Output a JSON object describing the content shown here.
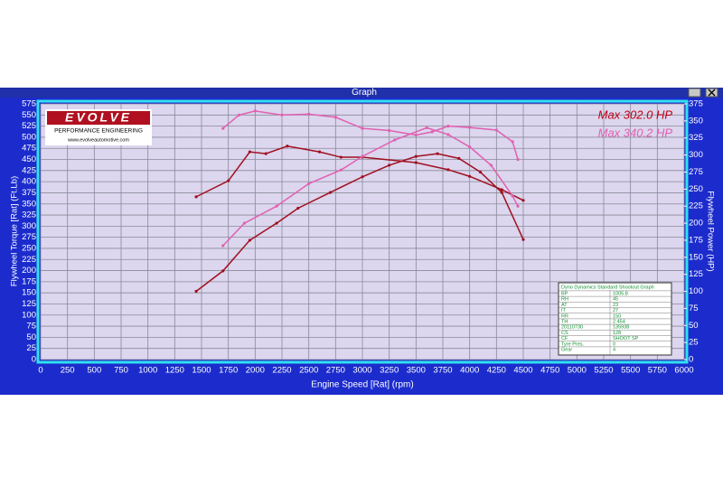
{
  "window": {
    "title": "Graph"
  },
  "logo": {
    "brand": "EVOLVE",
    "tagline": "PERFORMANCE ENGINEERING",
    "url": "www.evolveautomotive.com"
  },
  "info_box": {
    "title": "Dyno Dynamics Standard Shootout Graph",
    "rows": [
      [
        "BP",
        "1005.8"
      ],
      [
        "RH",
        "45"
      ],
      [
        "AT",
        "23"
      ],
      [
        "IT",
        "27"
      ],
      [
        "RR",
        "150"
      ],
      [
        "TH",
        "2.454"
      ],
      [
        "20110730",
        "135938"
      ],
      [
        "CS",
        "128"
      ],
      [
        "CF",
        "SHOOT SP"
      ],
      [
        "Tyre Pres.",
        "0"
      ],
      [
        "Gear",
        "4"
      ]
    ]
  },
  "chart_data": {
    "type": "line",
    "x_label": "Engine Speed [Rat] (rpm)",
    "y_label": "Flywheel Torque [Rat] (Ft.Lb)",
    "y2_label": "Flywheel Power (HP)",
    "xlim": [
      0,
      6000
    ],
    "xticks": [
      0,
      250,
      500,
      750,
      1000,
      1250,
      1500,
      1750,
      2000,
      2250,
      2500,
      2750,
      3000,
      3250,
      3500,
      3750,
      4000,
      4250,
      4500,
      4750,
      5000,
      5250,
      5500,
      5750,
      6000
    ],
    "ylim": [
      0,
      575
    ],
    "yticks": [
      0,
      25,
      50,
      75,
      100,
      125,
      150,
      175,
      200,
      225,
      250,
      275,
      300,
      325,
      350,
      375,
      400,
      425,
      450,
      475,
      500,
      525,
      550,
      575
    ],
    "y2lim": [
      0,
      375
    ],
    "y2ticks": [
      0,
      25,
      50,
      75,
      100,
      125,
      150,
      175,
      200,
      225,
      250,
      275,
      300,
      325,
      350,
      375
    ],
    "grid": true,
    "series": [
      {
        "color": "#a01020",
        "x": [
          1450,
          1750,
          1950,
          2100,
          2300,
          2600,
          2800,
          3000,
          3500,
          3800,
          4000,
          4300,
          4500
        ],
        "values": [
          366,
          402,
          467,
          463,
          480,
          467,
          455,
          455,
          443,
          427,
          412,
          382,
          358
        ]
      },
      {
        "color": "#a01020",
        "axis": "y2",
        "x": [
          1450,
          1700,
          1950,
          2200,
          2400,
          2700,
          3000,
          3250,
          3500,
          3700,
          3900,
          4100,
          4300,
          4500
        ],
        "values": [
          100,
          130,
          175,
          200,
          222,
          245,
          268,
          285,
          298,
          302,
          295,
          275,
          245,
          176
        ]
      },
      {
        "color": "#e060b0",
        "x": [
          1700,
          1850,
          2000,
          2250,
          2500,
          2750,
          3000,
          3250,
          3500,
          3650,
          3800,
          4000,
          4250,
          4400,
          4450
        ],
        "values": [
          520,
          550,
          559,
          550,
          552,
          545,
          520,
          515,
          505,
          512,
          525,
          522,
          516,
          490,
          450
        ]
      },
      {
        "color": "#e060b0",
        "axis": "y2",
        "x": [
          1700,
          1900,
          2200,
          2500,
          2800,
          3000,
          3300,
          3600,
          3800,
          4000,
          4200,
          4400,
          4450
        ],
        "values": [
          167,
          200,
          225,
          258,
          278,
          298,
          322,
          340,
          330,
          312,
          285,
          240,
          225
        ]
      }
    ],
    "annotations": [
      {
        "text": "Max 302.0 HP",
        "color": "#c00010"
      },
      {
        "text": "Max 340.2 HP",
        "color": "#e060b0"
      }
    ]
  }
}
